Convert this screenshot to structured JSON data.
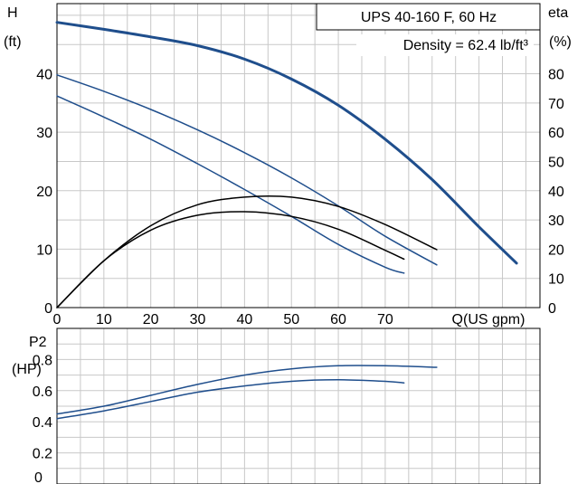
{
  "chart_data": [
    {
      "type": "line",
      "title": "UPS 40-160 F, 60 Hz",
      "subtitle": "Density = 62.4 lb/ft³",
      "xlabel": "Q(US gpm)",
      "ylabel_left": "H",
      "ylabel_left_unit": "(ft)",
      "ylabel_right": "eta",
      "ylabel_right_unit": "(%)",
      "xlim": [
        0,
        103
      ],
      "ylim": [
        0,
        52
      ],
      "y2lim": [
        0,
        104
      ],
      "grid": true,
      "legend": "none",
      "x_ticks": [
        "0",
        "10",
        "20",
        "30",
        "40",
        "50",
        "60",
        "70"
      ],
      "y_ticks": [
        "0",
        "10",
        "20",
        "30",
        "40"
      ],
      "y2_ticks": [
        "0",
        "10",
        "20",
        "30",
        "40",
        "50",
        "60",
        "70",
        "80"
      ],
      "y2_top_label": "(%)",
      "series": [
        {
          "axis": "left",
          "color": "#1f4e8c",
          "width": 3,
          "points": [
            [
              0,
              48.8
            ],
            [
              10,
              47.6
            ],
            [
              20,
              46.3
            ],
            [
              30,
              44.8
            ],
            [
              40,
              42.5
            ],
            [
              50,
              39.1
            ],
            [
              60,
              34.6
            ],
            [
              70,
              28.8
            ],
            [
              80,
              21.9
            ],
            [
              90,
              13.8
            ],
            [
              98,
              7.6
            ]
          ]
        },
        {
          "axis": "left",
          "color": "#1f4e8c",
          "width": 1.5,
          "points": [
            [
              0,
              39.8
            ],
            [
              10,
              37.0
            ],
            [
              20,
              33.9
            ],
            [
              30,
              30.4
            ],
            [
              40,
              26.5
            ],
            [
              50,
              22.2
            ],
            [
              60,
              17.4
            ],
            [
              70,
              12.2
            ],
            [
              81,
              7.3
            ]
          ]
        },
        {
          "axis": "left",
          "color": "#1f4e8c",
          "width": 1.5,
          "points": [
            [
              0,
              36.2
            ],
            [
              10,
              32.6
            ],
            [
              20,
              28.8
            ],
            [
              30,
              24.6
            ],
            [
              40,
              20.2
            ],
            [
              50,
              15.6
            ],
            [
              60,
              10.8
            ],
            [
              70,
              6.9
            ],
            [
              74,
              5.9
            ]
          ]
        },
        {
          "axis": "right",
          "color": "#000000",
          "width": 1.5,
          "points": [
            [
              0,
              0
            ],
            [
              10,
              16
            ],
            [
              20,
              28
            ],
            [
              30,
              35.2
            ],
            [
              40,
              37.8
            ],
            [
              50,
              37.8
            ],
            [
              60,
              34.6
            ],
            [
              70,
              28.4
            ],
            [
              81,
              19.8
            ]
          ]
        },
        {
          "axis": "right",
          "color": "#000000",
          "width": 1.5,
          "points": [
            [
              0,
              0
            ],
            [
              10,
              16
            ],
            [
              20,
              26.5
            ],
            [
              30,
              31.6
            ],
            [
              40,
              32.8
            ],
            [
              50,
              31.2
            ],
            [
              60,
              26.8
            ],
            [
              70,
              19.6
            ],
            [
              74,
              16.6
            ]
          ]
        }
      ]
    },
    {
      "type": "line",
      "ylabel": "P2",
      "ylabel_unit": "(HP)",
      "xlim": [
        0,
        103
      ],
      "ylim": [
        0,
        1.0
      ],
      "grid": true,
      "legend": "none",
      "y_ticks": [
        "0.2",
        "0.4",
        "0.6",
        "0.8"
      ],
      "y_ticks_bottom": "0",
      "series": [
        {
          "color": "#1f4e8c",
          "width": 1.5,
          "points": [
            [
              0,
              0.45
            ],
            [
              10,
              0.5
            ],
            [
              20,
              0.57
            ],
            [
              30,
              0.64
            ],
            [
              40,
              0.7
            ],
            [
              50,
              0.74
            ],
            [
              60,
              0.76
            ],
            [
              70,
              0.76
            ],
            [
              81,
              0.75
            ]
          ]
        },
        {
          "color": "#1f4e8c",
          "width": 1.5,
          "points": [
            [
              0,
              0.42
            ],
            [
              10,
              0.47
            ],
            [
              20,
              0.53
            ],
            [
              30,
              0.59
            ],
            [
              40,
              0.63
            ],
            [
              50,
              0.66
            ],
            [
              60,
              0.67
            ],
            [
              70,
              0.66
            ],
            [
              74,
              0.65
            ]
          ]
        }
      ]
    }
  ]
}
